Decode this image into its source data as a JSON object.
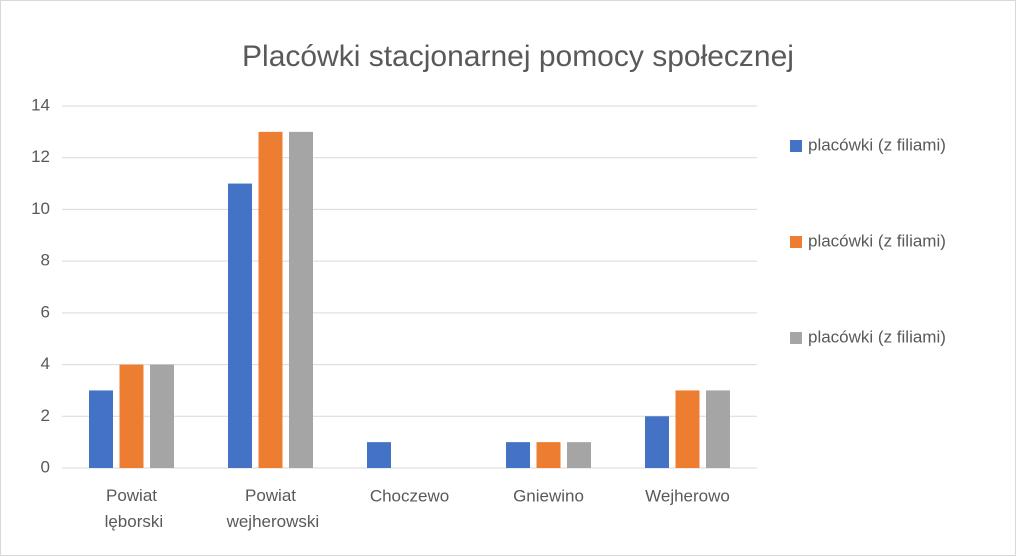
{
  "chart_data": {
    "type": "bar",
    "title": "Placówki stacjonarnej pomocy społecznej",
    "categories": [
      "Powiat lęborski",
      "Powiat wejherowski",
      "Choczewo",
      "Gniewino",
      "Wejherowo"
    ],
    "series": [
      {
        "name": "placówki (z filiami)",
        "color": "#4472c4",
        "values": [
          3,
          11,
          1,
          1,
          2
        ]
      },
      {
        "name": "placówki (z filiami)",
        "color": "#ed7d31",
        "values": [
          4,
          13,
          0,
          1,
          3
        ]
      },
      {
        "name": "placówki (z filiami)",
        "color": "#a5a5a5",
        "values": [
          4,
          13,
          0,
          1,
          3
        ]
      }
    ],
    "ylim": [
      0,
      14
    ],
    "yticks": [
      0,
      2,
      4,
      6,
      8,
      10,
      12,
      14
    ],
    "grid": true,
    "legend": "right"
  }
}
